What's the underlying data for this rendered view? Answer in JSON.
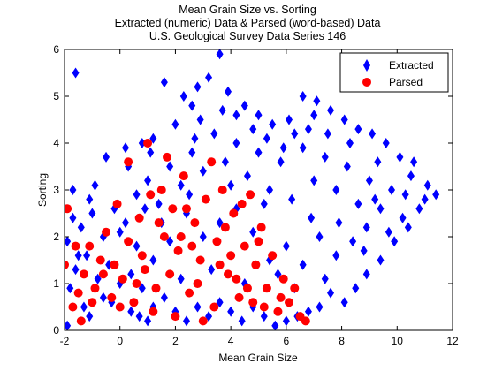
{
  "chart_data": {
    "type": "scatter",
    "title": [
      "Mean Grain Size vs. Sorting",
      "Extracted (numeric) Data & Parsed (word-based) Data",
      "U.S. Geological Survey Data Series 146"
    ],
    "xlabel": "Mean Grain Size",
    "ylabel": "Sorting",
    "xlim": [
      -2,
      12
    ],
    "ylim": [
      0,
      6
    ],
    "xticks": [
      -2,
      0,
      2,
      4,
      6,
      8,
      10,
      12
    ],
    "yticks": [
      0,
      1,
      2,
      3,
      4,
      5,
      6
    ],
    "grid": false,
    "legend": {
      "placement": "top-right"
    },
    "series": [
      {
        "name": "Extracted",
        "marker": "diamond",
        "color": "#0000ff",
        "points": [
          [
            -1.6,
            5.5
          ],
          [
            3.6,
            5.9
          ],
          [
            2.8,
            5.2
          ],
          [
            -1.9,
            1.9
          ],
          [
            -1.5,
            1.6
          ],
          [
            -1.7,
            3.0
          ],
          [
            -1.1,
            2.8
          ],
          [
            -0.5,
            3.7
          ],
          [
            0.2,
            3.9
          ],
          [
            0.8,
            4.0
          ],
          [
            1.2,
            4.1
          ],
          [
            1.6,
            5.3
          ],
          [
            2.3,
            5.0
          ],
          [
            2.6,
            4.8
          ],
          [
            3.2,
            5.4
          ],
          [
            3.9,
            5.1
          ],
          [
            4.5,
            4.8
          ],
          [
            5.0,
            4.6
          ],
          [
            5.5,
            4.4
          ],
          [
            6.1,
            4.5
          ],
          [
            6.6,
            5.0
          ],
          [
            7.1,
            4.9
          ],
          [
            7.6,
            4.7
          ],
          [
            8.1,
            4.5
          ],
          [
            8.6,
            4.3
          ],
          [
            9.1,
            4.2
          ],
          [
            9.6,
            4.0
          ],
          [
            10.1,
            3.7
          ],
          [
            10.6,
            3.6
          ],
          [
            11.1,
            3.1
          ],
          [
            11.4,
            2.9
          ],
          [
            10.8,
            2.6
          ],
          [
            10.4,
            2.2
          ],
          [
            9.9,
            1.9
          ],
          [
            9.4,
            1.5
          ],
          [
            8.9,
            1.2
          ],
          [
            8.5,
            0.9
          ],
          [
            8.1,
            0.6
          ],
          [
            7.6,
            0.8
          ],
          [
            7.2,
            0.5
          ],
          [
            6.8,
            0.4
          ],
          [
            6.4,
            0.3
          ],
          [
            6.0,
            0.2
          ],
          [
            5.6,
            0.1
          ],
          [
            5.2,
            0.3
          ],
          [
            4.8,
            0.5
          ],
          [
            4.4,
            0.2
          ],
          [
            4.0,
            0.4
          ],
          [
            3.6,
            0.6
          ],
          [
            3.2,
            0.3
          ],
          [
            2.8,
            0.5
          ],
          [
            2.4,
            0.2
          ],
          [
            2.0,
            0.4
          ],
          [
            1.6,
            0.7
          ],
          [
            1.2,
            0.5
          ],
          [
            0.8,
            0.9
          ],
          [
            0.4,
            1.2
          ],
          [
            0.0,
            1.0
          ],
          [
            -0.4,
            1.4
          ],
          [
            -0.8,
            1.1
          ],
          [
            -1.2,
            1.6
          ],
          [
            -1.6,
            1.3
          ],
          [
            -1.8,
            0.9
          ],
          [
            -1.4,
            2.2
          ],
          [
            -1.0,
            2.5
          ],
          [
            -0.6,
            2.0
          ],
          [
            -0.2,
            2.6
          ],
          [
            0.2,
            2.3
          ],
          [
            0.6,
            2.9
          ],
          [
            1.0,
            3.2
          ],
          [
            1.4,
            2.7
          ],
          [
            1.8,
            3.5
          ],
          [
            2.2,
            3.1
          ],
          [
            2.6,
            3.8
          ],
          [
            3.0,
            3.4
          ],
          [
            3.4,
            4.2
          ],
          [
            3.8,
            3.6
          ],
          [
            4.2,
            4.0
          ],
          [
            4.6,
            3.3
          ],
          [
            5.0,
            3.8
          ],
          [
            5.4,
            3.0
          ],
          [
            5.8,
            3.6
          ],
          [
            6.2,
            2.8
          ],
          [
            6.6,
            3.9
          ],
          [
            7.0,
            3.2
          ],
          [
            7.4,
            3.7
          ],
          [
            7.8,
            3.0
          ],
          [
            8.2,
            3.5
          ],
          [
            8.6,
            2.7
          ],
          [
            9.0,
            3.2
          ],
          [
            9.4,
            2.6
          ],
          [
            9.8,
            3.0
          ],
          [
            10.2,
            2.4
          ],
          [
            7.2,
            2.0
          ],
          [
            7.8,
            1.6
          ],
          [
            8.4,
            1.9
          ],
          [
            6.6,
            1.4
          ],
          [
            6.0,
            1.8
          ],
          [
            5.4,
            1.5
          ],
          [
            4.8,
            2.1
          ],
          [
            4.2,
            2.6
          ],
          [
            3.6,
            2.3
          ],
          [
            3.0,
            2.0
          ],
          [
            2.4,
            2.5
          ],
          [
            1.8,
            1.9
          ],
          [
            1.2,
            1.5
          ],
          [
            0.6,
            1.8
          ],
          [
            0.0,
            2.1
          ],
          [
            -0.6,
            0.7
          ],
          [
            0.4,
            0.4
          ],
          [
            1.0,
            0.2
          ],
          [
            -1.3,
            0.5
          ],
          [
            2.0,
            4.4
          ],
          [
            2.9,
            4.5
          ],
          [
            4.2,
            4.6
          ],
          [
            5.3,
            4.1
          ],
          [
            6.8,
            4.3
          ],
          [
            7.5,
            4.2
          ],
          [
            8.3,
            4.0
          ],
          [
            9.3,
            3.6
          ],
          [
            10.5,
            3.3
          ],
          [
            11.0,
            2.8
          ],
          [
            9.7,
            2.1
          ],
          [
            8.8,
            1.7
          ],
          [
            7.4,
            1.1
          ],
          [
            6.3,
            0.9
          ],
          [
            5.7,
            1.2
          ],
          [
            4.5,
            1.0
          ],
          [
            3.3,
            1.3
          ],
          [
            2.2,
            1.1
          ],
          [
            1.5,
            2.3
          ],
          [
            0.9,
            2.6
          ],
          [
            -0.9,
            3.1
          ],
          [
            -1.7,
            2.4
          ],
          [
            0.3,
            3.5
          ],
          [
            1.1,
            3.8
          ],
          [
            2.7,
            4.1
          ],
          [
            3.7,
            4.7
          ],
          [
            4.8,
            4.3
          ],
          [
            5.9,
            3.9
          ],
          [
            6.9,
            2.4
          ],
          [
            7.9,
            2.3
          ],
          [
            8.9,
            2.2
          ],
          [
            9.2,
            2.8
          ],
          [
            10.3,
            2.9
          ],
          [
            7.0,
            4.6
          ],
          [
            6.3,
            4.2
          ],
          [
            5.2,
            2.7
          ],
          [
            4.0,
            3.1
          ],
          [
            2.5,
            2.9
          ],
          [
            1.3,
            0.9
          ],
          [
            0.7,
            0.3
          ],
          [
            -0.3,
            0.6
          ],
          [
            -1.1,
            0.3
          ],
          [
            -1.9,
            0.1
          ]
        ]
      },
      {
        "name": "Parsed",
        "marker": "circle",
        "color": "#ff0000",
        "points": [
          [
            -1.9,
            2.6
          ],
          [
            -2.0,
            1.4
          ],
          [
            -1.7,
            0.5
          ],
          [
            -1.5,
            0.8
          ],
          [
            -1.3,
            1.2
          ],
          [
            -1.1,
            1.8
          ],
          [
            -0.9,
            0.9
          ],
          [
            -0.7,
            1.5
          ],
          [
            -0.5,
            2.1
          ],
          [
            -0.3,
            0.7
          ],
          [
            -0.1,
            2.7
          ],
          [
            0.1,
            1.1
          ],
          [
            0.3,
            1.9
          ],
          [
            0.5,
            0.6
          ],
          [
            0.7,
            2.4
          ],
          [
            0.9,
            1.3
          ],
          [
            1.1,
            2.9
          ],
          [
            1.3,
            0.9
          ],
          [
            1.5,
            3.0
          ],
          [
            1.7,
            3.7
          ],
          [
            1.9,
            2.6
          ],
          [
            2.1,
            1.7
          ],
          [
            2.3,
            3.3
          ],
          [
            2.5,
            0.8
          ],
          [
            2.7,
            2.3
          ],
          [
            2.9,
            1.5
          ],
          [
            3.1,
            2.8
          ],
          [
            3.3,
            3.6
          ],
          [
            3.5,
            1.9
          ],
          [
            3.7,
            3.0
          ],
          [
            3.9,
            1.2
          ],
          [
            4.1,
            2.5
          ],
          [
            4.3,
            0.7
          ],
          [
            4.5,
            1.8
          ],
          [
            4.7,
            2.9
          ],
          [
            4.9,
            1.4
          ],
          [
            5.1,
            2.2
          ],
          [
            5.3,
            0.9
          ],
          [
            5.5,
            1.6
          ],
          [
            5.7,
            0.4
          ],
          [
            5.9,
            1.1
          ],
          [
            6.1,
            0.6
          ],
          [
            6.3,
            0.9
          ],
          [
            6.5,
            0.3
          ],
          [
            6.7,
            0.2
          ],
          [
            0.3,
            3.6
          ],
          [
            1.0,
            4.0
          ],
          [
            1.6,
            2.0
          ],
          [
            2.2,
            2.0
          ],
          [
            2.8,
            1.0
          ],
          [
            3.4,
            0.5
          ],
          [
            4.0,
            1.6
          ],
          [
            4.6,
            0.9
          ],
          [
            5.2,
            0.5
          ],
          [
            5.8,
            0.7
          ],
          [
            1.2,
            0.4
          ],
          [
            0.6,
            1.0
          ],
          [
            -0.2,
            1.4
          ],
          [
            -1.0,
            0.6
          ],
          [
            -1.6,
            1.8
          ],
          [
            2.0,
            0.3
          ],
          [
            3.0,
            0.2
          ],
          [
            3.6,
            1.4
          ],
          [
            4.2,
            1.1
          ],
          [
            4.8,
            0.6
          ],
          [
            2.6,
            1.8
          ],
          [
            1.8,
            1.2
          ],
          [
            0.8,
            1.6
          ],
          [
            3.8,
            2.2
          ],
          [
            4.4,
            2.7
          ],
          [
            5.0,
            1.9
          ],
          [
            2.4,
            2.6
          ],
          [
            1.4,
            2.3
          ],
          [
            0.0,
            0.5
          ],
          [
            -0.6,
            1.2
          ],
          [
            -1.4,
            0.2
          ]
        ]
      }
    ]
  }
}
